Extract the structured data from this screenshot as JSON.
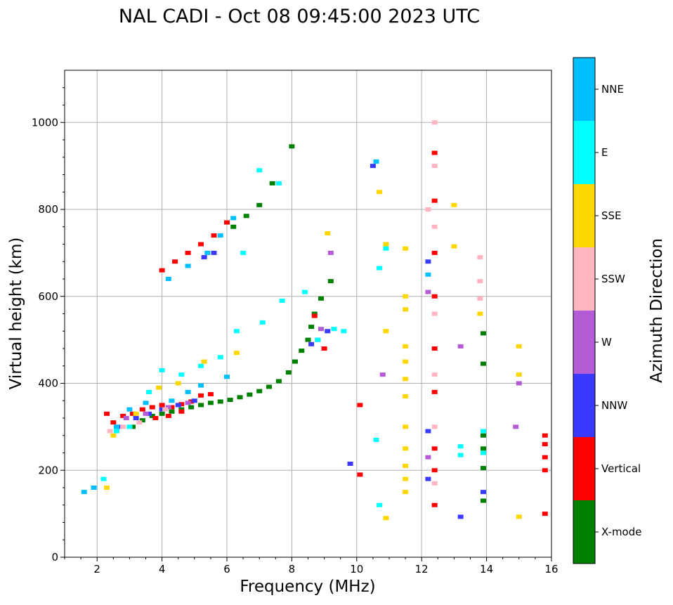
{
  "chart_data": {
    "type": "scatter",
    "title": "NAL CADI - Oct 08 09:45:00 2023 UTC",
    "xlabel": "Frequency (MHz)",
    "ylabel": "Virtual height (km)",
    "xlim": [
      1,
      16
    ],
    "ylim": [
      0,
      1120
    ],
    "xticks": [
      "2",
      "4",
      "6",
      "8",
      "10",
      "12",
      "14",
      "16"
    ],
    "yticks": [
      "0",
      "200",
      "400",
      "600",
      "800",
      "1000"
    ],
    "xtick_values": [
      2,
      4,
      6,
      8,
      10,
      12,
      14,
      16
    ],
    "ytick_values": [
      0,
      200,
      400,
      600,
      800,
      1000
    ],
    "grid": true,
    "colorbar": {
      "label": "Azimuth Direction",
      "categories": [
        "X-mode",
        "Vertical",
        "NNW",
        "W",
        "SSW",
        "SSE",
        "E",
        "NNE"
      ],
      "colors": [
        "#008000",
        "#ff0000",
        "#3a3aff",
        "#b45bd6",
        "#ffb6c1",
        "#ffd700",
        "#00ffff",
        "#00bfff"
      ]
    },
    "series": [
      {
        "name": "X-mode",
        "points": [
          [
            3.1,
            300
          ],
          [
            3.4,
            315
          ],
          [
            3.7,
            325
          ],
          [
            4.0,
            330
          ],
          [
            4.3,
            335
          ],
          [
            4.6,
            340
          ],
          [
            4.9,
            345
          ],
          [
            5.2,
            350
          ],
          [
            5.5,
            355
          ],
          [
            5.8,
            358
          ],
          [
            6.1,
            362
          ],
          [
            6.4,
            368
          ],
          [
            6.7,
            374
          ],
          [
            7.0,
            382
          ],
          [
            7.3,
            392
          ],
          [
            7.6,
            405
          ],
          [
            7.9,
            425
          ],
          [
            8.1,
            450
          ],
          [
            8.3,
            475
          ],
          [
            8.5,
            500
          ],
          [
            8.6,
            530
          ],
          [
            8.7,
            560
          ],
          [
            8.9,
            595
          ],
          [
            9.2,
            635
          ],
          [
            13.9,
            280
          ],
          [
            13.9,
            250
          ],
          [
            13.9,
            205
          ],
          [
            13.9,
            130
          ],
          [
            13.9,
            515
          ],
          [
            13.9,
            445
          ],
          [
            6.2,
            760
          ],
          [
            6.6,
            785
          ],
          [
            7.0,
            810
          ],
          [
            7.4,
            860
          ],
          [
            8.0,
            945
          ]
        ]
      },
      {
        "name": "Vertical",
        "points": [
          [
            2.3,
            330
          ],
          [
            2.5,
            310
          ],
          [
            2.8,
            325
          ],
          [
            3.1,
            330
          ],
          [
            3.4,
            340
          ],
          [
            3.7,
            345
          ],
          [
            4.0,
            350
          ],
          [
            4.3,
            345
          ],
          [
            4.6,
            352
          ],
          [
            4.9,
            358
          ],
          [
            5.2,
            372
          ],
          [
            5.5,
            375
          ],
          [
            3.8,
            320
          ],
          [
            4.2,
            325
          ],
          [
            4.6,
            335
          ],
          [
            4.0,
            660
          ],
          [
            4.4,
            680
          ],
          [
            4.8,
            700
          ],
          [
            5.2,
            720
          ],
          [
            5.6,
            740
          ],
          [
            6.0,
            770
          ],
          [
            8.7,
            555
          ],
          [
            9.0,
            480
          ],
          [
            10.1,
            190
          ],
          [
            10.1,
            350
          ],
          [
            12.4,
            930
          ],
          [
            12.4,
            820
          ],
          [
            12.4,
            700
          ],
          [
            12.4,
            600
          ],
          [
            12.4,
            480
          ],
          [
            12.4,
            380
          ],
          [
            12.4,
            250
          ],
          [
            12.4,
            200
          ],
          [
            12.4,
            120
          ],
          [
            15.8,
            260
          ],
          [
            15.8,
            230
          ],
          [
            15.8,
            200
          ],
          [
            15.8,
            280
          ],
          [
            15.8,
            100
          ]
        ]
      },
      {
        "name": "NNW",
        "points": [
          [
            2.7,
            300
          ],
          [
            3.2,
            320
          ],
          [
            3.6,
            330
          ],
          [
            4.0,
            340
          ],
          [
            4.5,
            350
          ],
          [
            5.0,
            360
          ],
          [
            5.3,
            690
          ],
          [
            5.6,
            700
          ],
          [
            8.6,
            490
          ],
          [
            8.8,
            500
          ],
          [
            9.1,
            520
          ],
          [
            10.5,
            900
          ],
          [
            12.2,
            680
          ],
          [
            12.2,
            290
          ],
          [
            12.2,
            180
          ],
          [
            13.2,
            93
          ],
          [
            13.9,
            150
          ],
          [
            9.8,
            215
          ]
        ]
      },
      {
        "name": "W",
        "points": [
          [
            2.9,
            320
          ],
          [
            3.5,
            330
          ],
          [
            4.2,
            345
          ],
          [
            4.8,
            355
          ],
          [
            8.9,
            525
          ],
          [
            9.2,
            700
          ],
          [
            10.8,
            420
          ],
          [
            12.2,
            610
          ],
          [
            12.2,
            230
          ],
          [
            13.2,
            485
          ],
          [
            14.9,
            300
          ],
          [
            15.0,
            400
          ]
        ]
      },
      {
        "name": "SSW",
        "points": [
          [
            2.4,
            290
          ],
          [
            2.8,
            300
          ],
          [
            3.3,
            310
          ],
          [
            4.1,
            340
          ],
          [
            12.4,
            1000
          ],
          [
            12.4,
            900
          ],
          [
            12.4,
            760
          ],
          [
            12.4,
            560
          ],
          [
            12.4,
            420
          ],
          [
            12.4,
            300
          ],
          [
            12.4,
            170
          ],
          [
            13.8,
            690
          ],
          [
            13.8,
            635
          ],
          [
            13.8,
            595
          ],
          [
            12.2,
            800
          ]
        ]
      },
      {
        "name": "SSE",
        "points": [
          [
            2.5,
            280
          ],
          [
            3.2,
            330
          ],
          [
            3.9,
            390
          ],
          [
            4.5,
            400
          ],
          [
            5.3,
            450
          ],
          [
            6.3,
            470
          ],
          [
            9.1,
            745
          ],
          [
            10.9,
            720
          ],
          [
            10.9,
            520
          ],
          [
            10.7,
            840
          ],
          [
            11.5,
            710
          ],
          [
            11.5,
            600
          ],
          [
            11.5,
            570
          ],
          [
            11.5,
            485
          ],
          [
            11.5,
            450
          ],
          [
            11.5,
            410
          ],
          [
            11.5,
            370
          ],
          [
            11.5,
            300
          ],
          [
            11.5,
            250
          ],
          [
            11.5,
            210
          ],
          [
            11.5,
            180
          ],
          [
            11.5,
            150
          ],
          [
            13.0,
            810
          ],
          [
            13.0,
            715
          ],
          [
            13.8,
            560
          ],
          [
            15.0,
            485
          ],
          [
            15.0,
            420
          ],
          [
            15.0,
            93
          ],
          [
            10.9,
            90
          ],
          [
            2.3,
            160
          ]
        ]
      },
      {
        "name": "E",
        "points": [
          [
            2.2,
            180
          ],
          [
            2.6,
            290
          ],
          [
            3.0,
            300
          ],
          [
            3.6,
            380
          ],
          [
            4.0,
            430
          ],
          [
            4.6,
            420
          ],
          [
            5.2,
            440
          ],
          [
            5.8,
            460
          ],
          [
            6.3,
            520
          ],
          [
            7.1,
            540
          ],
          [
            7.7,
            590
          ],
          [
            8.4,
            610
          ],
          [
            8.8,
            500
          ],
          [
            9.3,
            525
          ],
          [
            9.6,
            520
          ],
          [
            10.7,
            665
          ],
          [
            10.9,
            710
          ],
          [
            10.6,
            270
          ],
          [
            10.7,
            120
          ],
          [
            13.2,
            255
          ],
          [
            13.2,
            235
          ],
          [
            13.9,
            290
          ],
          [
            13.9,
            240
          ],
          [
            6.5,
            700
          ],
          [
            7.0,
            890
          ],
          [
            7.6,
            860
          ]
        ]
      },
      {
        "name": "NNE",
        "points": [
          [
            1.6,
            150
          ],
          [
            1.9,
            160
          ],
          [
            2.6,
            300
          ],
          [
            3.0,
            340
          ],
          [
            3.5,
            355
          ],
          [
            4.3,
            360
          ],
          [
            4.8,
            380
          ],
          [
            5.2,
            395
          ],
          [
            6.0,
            415
          ],
          [
            4.2,
            640
          ],
          [
            4.8,
            670
          ],
          [
            5.4,
            700
          ],
          [
            5.8,
            740
          ],
          [
            6.2,
            780
          ],
          [
            10.6,
            910
          ],
          [
            12.2,
            650
          ]
        ]
      }
    ]
  }
}
